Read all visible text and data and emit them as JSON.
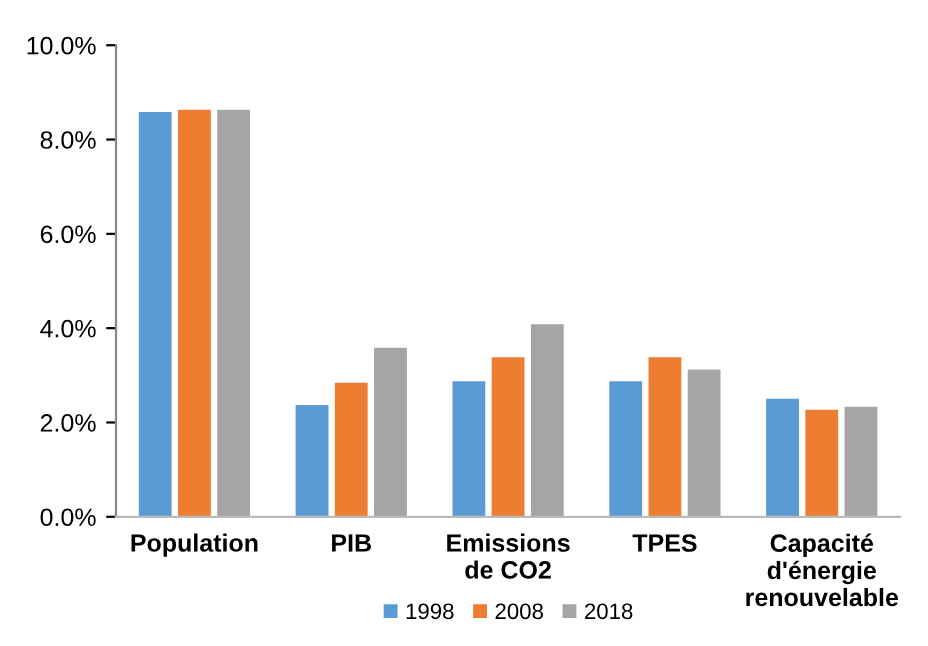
{
  "chart_data": {
    "type": "bar",
    "categories": [
      "Population",
      "PIB",
      "Emissions\nde CO2",
      "TPES",
      "Capacité\nd'énergie\nrenouvelable"
    ],
    "series": [
      {
        "name": "1998",
        "color": "#5b9bd5",
        "values": [
          8.6,
          2.39,
          2.89,
          2.89,
          2.52
        ]
      },
      {
        "name": "2008",
        "color": "#ed7d31",
        "values": [
          8.65,
          2.86,
          3.4,
          3.4,
          2.29
        ]
      },
      {
        "name": "2018",
        "color": "#a5a5a5",
        "values": [
          8.65,
          3.6,
          4.1,
          3.14,
          2.35
        ]
      }
    ],
    "ylim": [
      0,
      10
    ],
    "yticks": [
      {
        "value": 0,
        "label": "0.0%"
      },
      {
        "value": 2,
        "label": "2.0%"
      },
      {
        "value": 4,
        "label": "4.0%"
      },
      {
        "value": 6,
        "label": "6.0%"
      },
      {
        "value": 8,
        "label": "8.0%"
      },
      {
        "value": 10,
        "label": "10.0%"
      }
    ],
    "grid": false,
    "legend": "bottom"
  }
}
